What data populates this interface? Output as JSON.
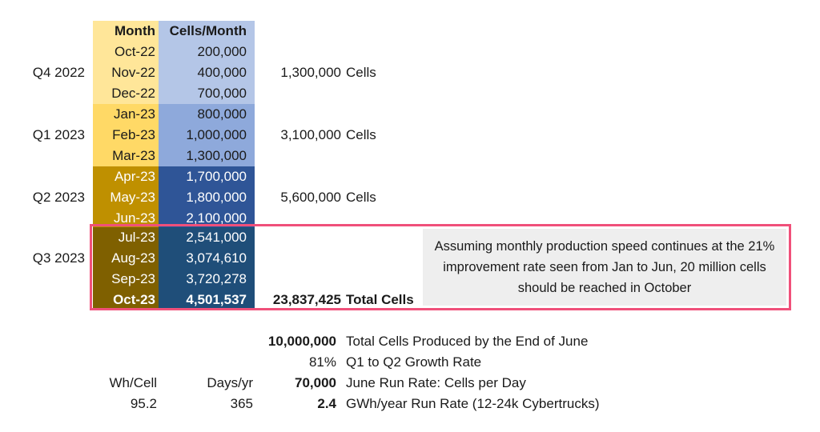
{
  "table": {
    "headers": {
      "month": "Month",
      "cells": "Cells/Month"
    },
    "rows": [
      {
        "month": "Oct-22",
        "cells": "200,000"
      },
      {
        "month": "Nov-22",
        "cells": "400,000"
      },
      {
        "month": "Dec-22",
        "cells": "700,000"
      },
      {
        "month": "Jan-23",
        "cells": "800,000"
      },
      {
        "month": "Feb-23",
        "cells": "1,000,000"
      },
      {
        "month": "Mar-23",
        "cells": "1,300,000"
      },
      {
        "month": "Apr-23",
        "cells": "1,700,000"
      },
      {
        "month": "May-23",
        "cells": "1,800,000"
      },
      {
        "month": "Jun-23",
        "cells": "2,100,000"
      },
      {
        "month": "Jul-23",
        "cells": "2,541,000"
      },
      {
        "month": "Aug-23",
        "cells": "3,074,610"
      },
      {
        "month": "Sep-23",
        "cells": "3,720,278"
      },
      {
        "month": "Oct-23",
        "cells": "4,501,537"
      }
    ],
    "quarters": [
      {
        "label": "Q4 2022",
        "total": "1,300,000",
        "unit": "Cells"
      },
      {
        "label": "Q1 2023",
        "total": "3,100,000",
        "unit": "Cells"
      },
      {
        "label": "Q2 2023",
        "total": "5,600,000",
        "unit": "Cells"
      },
      {
        "label": "Q3 2023"
      }
    ],
    "grand_total": {
      "value": "23,837,425",
      "label": "Total Cells"
    }
  },
  "note": "Assuming monthly production speed continues at the 21% improvement rate seen from Jan to Jun, 20 million cells should be reached in October",
  "summary": {
    "col_headers": {
      "wh_per_cell": "Wh/Cell",
      "days_per_yr": "Days/yr"
    },
    "col_values": {
      "wh_per_cell": "95.2",
      "days_per_yr": "365"
    },
    "metrics": [
      {
        "value": "10,000,000",
        "label": "Total Cells Produced by the End of June",
        "bold": true
      },
      {
        "value": "81%",
        "label": "Q1 to Q2 Growth Rate",
        "bold": false
      },
      {
        "value": "70,000",
        "label": "June Run Rate: Cells per Day",
        "bold": true
      },
      {
        "value": "2.4",
        "label": "GWh/year Run Rate (12-24k Cybertrucks)",
        "bold": true
      }
    ]
  },
  "colors": {
    "month_header": "#ffe699",
    "cells_header": "#b4c6e7",
    "q4_month": "#ffe699",
    "q4_cells": "#b4c6e7",
    "q1_month": "#ffd966",
    "q1_cells": "#8ea9db",
    "q2_month": "#bf9000",
    "q2_cells": "#2f5597",
    "q3_month": "#7f6000",
    "q3_cells": "#1f4e79",
    "box_border": "#f0507a",
    "note_bg": "#eeeeee"
  }
}
